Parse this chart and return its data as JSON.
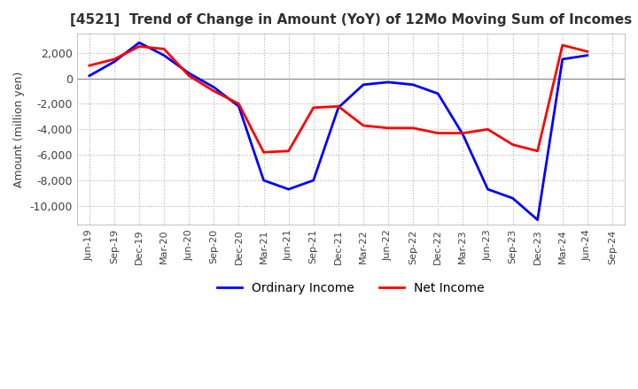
{
  "title": "[4521]  Trend of Change in Amount (YoY) of 12Mo Moving Sum of Incomes",
  "ylabel": "Amount (million yen)",
  "xlabels": [
    "Jun-19",
    "Sep-19",
    "Dec-19",
    "Mar-20",
    "Jun-20",
    "Sep-20",
    "Dec-20",
    "Mar-21",
    "Jun-21",
    "Sep-21",
    "Dec-21",
    "Mar-22",
    "Jun-22",
    "Sep-22",
    "Dec-22",
    "Mar-23",
    "Jun-23",
    "Sep-23",
    "Dec-23",
    "Mar-24",
    "Jun-24",
    "Sep-24"
  ],
  "ordinary_income": [
    200,
    1300,
    2800,
    1800,
    400,
    -700,
    -2200,
    -8000,
    -8700,
    -8000,
    -2300,
    -500,
    -300,
    -500,
    -1200,
    -4400,
    -8700,
    -9400,
    -11100,
    1500,
    1800,
    null
  ],
  "net_income": [
    1000,
    1500,
    2500,
    2300,
    200,
    -1000,
    -2000,
    -5800,
    -5700,
    -2300,
    -2200,
    -3700,
    -3900,
    -3900,
    -4300,
    -4300,
    -4000,
    -5200,
    -5700,
    2600,
    2100,
    null
  ],
  "ordinary_income_color": "#0000ff",
  "net_income_color": "#ff0000",
  "ylim": [
    -11500,
    3500
  ],
  "yticks": [
    2000,
    0,
    -2000,
    -4000,
    -6000,
    -8000,
    -10000
  ],
  "background_color": "#ffffff",
  "grid_color": "#b0b0b0",
  "title_color": "#303030"
}
